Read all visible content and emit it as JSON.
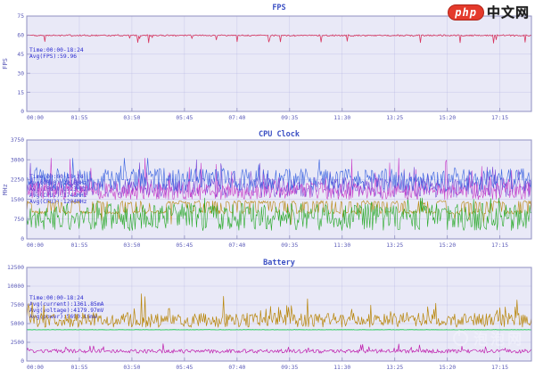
{
  "watermarks": {
    "top": {
      "logo": "php",
      "site": "中文网",
      "logo_color": "#e43a2b"
    },
    "plot": {
      "text": "泡泡网",
      "color": "#f8f8ff"
    }
  },
  "chart_data": [
    {
      "id": "fps",
      "type": "line",
      "title": "FPS",
      "ylabel": "FPS",
      "ylim": [
        0,
        75
      ],
      "yticks": [
        0,
        15,
        30,
        45,
        60,
        75
      ],
      "x_range_minutes": 1104,
      "xtick_step_minutes": 115,
      "xtick_labels": [
        "00:00",
        "01:55",
        "03:50",
        "05:45",
        "07:40",
        "09:35",
        "11:30",
        "13:25",
        "15:20",
        "17:15"
      ],
      "grid": true,
      "legend": "none",
      "annotation": [
        "Time:00:00-18:24",
        "Avg(FPS):59.96"
      ],
      "series": [
        {
          "name": "fps",
          "color": "#d8365f",
          "gen": "fps",
          "base": 60.1,
          "noise": 1.1,
          "dip_prob": 0.05,
          "dip_max": 6.5,
          "min": 52.5,
          "max": 61,
          "avg": 59.96,
          "seed": 11,
          "width": 0.8
        }
      ]
    },
    {
      "id": "cpu-clock",
      "type": "line",
      "title": "CPU Clock",
      "ylabel": "MHz",
      "ylim": [
        0,
        3750
      ],
      "yticks": [
        0,
        750,
        1500,
        2250,
        3000,
        3750
      ],
      "x_range_minutes": 1104,
      "xtick_step_minutes": 115,
      "xtick_labels": [
        "00:00",
        "01:55",
        "03:50",
        "05:45",
        "07:40",
        "09:35",
        "11:30",
        "13:25",
        "15:20",
        "17:15"
      ],
      "grid": true,
      "legend": "none",
      "annotation": [
        "Time:00:00-18:24",
        "Avg(CPU0):2216MHz",
        "Avg(CPU1):1923MHz",
        "Avg(CPU2):1748MHz",
        "Avg(CPU3):1204MHz"
      ],
      "series": [
        {
          "name": "series-gold",
          "color": "#b8860b",
          "gen": "bimodal",
          "lo": 1010,
          "hi": 1390,
          "jitter": 130,
          "drop_prob": 0.05,
          "drop": 520,
          "min": 560,
          "max": 1500,
          "seed": 21,
          "width": 0.6
        },
        {
          "name": "series-green",
          "color": "#25a825",
          "gen": "noisy",
          "base": 830,
          "spread": 520,
          "spike_prob": 0.05,
          "spike": 620,
          "min": 160,
          "max": 1550,
          "seed": 22,
          "width": 0.6
        },
        {
          "name": "series-violet",
          "color": "#7d4fd8",
          "gen": "noisy",
          "base": 1950,
          "spread": 380,
          "spike_prob": 0.06,
          "spike": 950,
          "min": 1390,
          "max": 3050,
          "seed": 23,
          "width": 0.6
        },
        {
          "name": "series-magenta",
          "color": "#c93fc9",
          "gen": "noisy",
          "base": 1820,
          "spread": 330,
          "spike_prob": 0.08,
          "spike": 1180,
          "min": 1350,
          "max": 3060,
          "seed": 24,
          "width": 0.6
        },
        {
          "name": "series-blue",
          "color": "#3a63e0",
          "gen": "noisy",
          "base": 2240,
          "spread": 430,
          "spike_prob": 0.07,
          "spike": 720,
          "min": 1500,
          "max": 3060,
          "seed": 25,
          "width": 0.6
        }
      ]
    },
    {
      "id": "battery",
      "type": "line",
      "title": "Battery",
      "ylabel": "",
      "ylim": [
        0,
        12500
      ],
      "yticks": [
        0,
        2500,
        5000,
        7500,
        10000,
        12500
      ],
      "x_range_minutes": 1104,
      "xtick_step_minutes": 115,
      "xtick_labels": [
        "00:00",
        "01:55",
        "03:50",
        "05:45",
        "07:40",
        "09:35",
        "11:30",
        "13:25",
        "15:20",
        "17:15"
      ],
      "grid": true,
      "legend": "none",
      "annotation": [
        "Time:00:00-18:24",
        "Avg(current):1361.85mA",
        "Avg(voltage):4179.97mV",
        "Avg(power):5690.16mW"
      ],
      "series": [
        {
          "name": "power-mw",
          "color": "#b8860b",
          "gen": "noisy",
          "base": 5450,
          "spread": 950,
          "spike_prob": 0.1,
          "spike": 2700,
          "min": 3100,
          "max": 9600,
          "avg": 5690.16,
          "seed": 31,
          "width": 0.7
        },
        {
          "name": "voltage-mv",
          "color": "#41cf70",
          "gen": "noisy",
          "base": 4185,
          "spread": 26,
          "spike_prob": 0,
          "spike": 0,
          "min": 4100,
          "max": 4260,
          "avg": 4179.97,
          "seed": 32,
          "width": 1.1
        },
        {
          "name": "current-ma",
          "color": "#bf1fae",
          "gen": "noisy",
          "base": 1310,
          "spread": 265,
          "spike_prob": 0.05,
          "spike": 780,
          "min": 690,
          "max": 2400,
          "avg": 1361.85,
          "seed": 33,
          "width": 0.7
        }
      ]
    }
  ]
}
